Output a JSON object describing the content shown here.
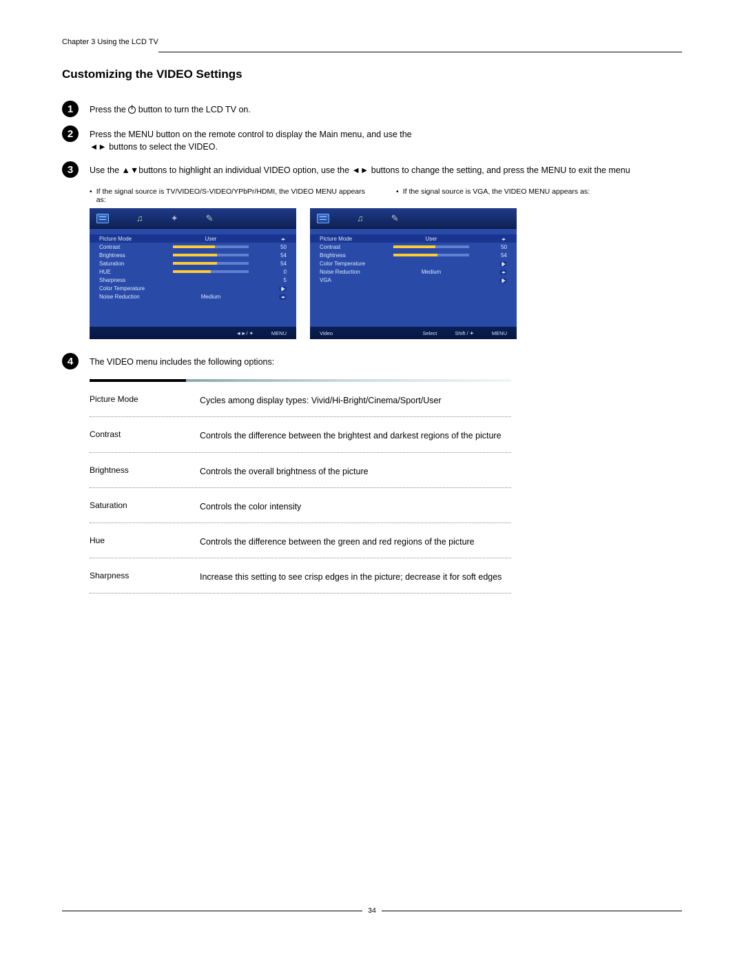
{
  "header": {
    "chapter": "Chapter 3 Using the LCD TV",
    "title": "Customizing the VIDEO Settings"
  },
  "steps": {
    "s1": {
      "pre": "Press the ",
      "post": " button to turn the LCD TV on."
    },
    "s2": {
      "a": "Press the MENU button on the remote control to display the Main menu, and use the",
      "b": "◄► buttons to select the VIDEO."
    },
    "s3": {
      "a": "Use the  ▲▼buttons to highlight an individual VIDEO option, use the ◄► buttons to change the setting, and press the MENU to exit the menu"
    },
    "s4": {
      "a": "The VIDEO menu includes the following options:"
    }
  },
  "captions": {
    "left": "If the signal source is TV/VIDEO/S-VIDEO/YPbPr/HDMI, the VIDEO MENU appears as:",
    "right": "If the signal source is VGA, the VIDEO MENU appears as:"
  },
  "menu_left": {
    "rows": [
      {
        "label": "Picture Mode",
        "center_text": "User",
        "right_type": "arrows",
        "hilite": true
      },
      {
        "label": "Contrast",
        "slider": 55,
        "right_text": "50"
      },
      {
        "label": "Brightness",
        "slider": 58,
        "right_text": "54"
      },
      {
        "label": "Saturation",
        "slider": 58,
        "right_text": "54"
      },
      {
        "label": "HUE",
        "slider": 50,
        "right_text": "0"
      },
      {
        "label": "Sharpness",
        "right_text": "5"
      },
      {
        "label": "Color Temperature",
        "right_type": "enter"
      },
      {
        "label": "Noise Reduction",
        "center_text": "Medium",
        "right_type": "arrows"
      }
    ],
    "footer": [
      "",
      "◄►/ ✦",
      "MENU"
    ]
  },
  "menu_right": {
    "rows": [
      {
        "label": "Picture Mode",
        "center_text": "User",
        "right_type": "arrows",
        "hilite": true
      },
      {
        "label": "Contrast",
        "slider": 55,
        "right_text": "50"
      },
      {
        "label": "Brightness",
        "slider": 58,
        "right_text": "54"
      },
      {
        "label": "Color Temperature",
        "right_type": "enter"
      },
      {
        "label": "Noise Reduction",
        "center_text": "Medium",
        "right_type": "arrows"
      },
      {
        "label": "VGA",
        "right_type": "enter"
      }
    ],
    "footer_left": "Video",
    "footer": [
      "Select",
      "Shift / ✦",
      "MENU"
    ]
  },
  "options": [
    {
      "name": "Picture Mode",
      "desc": "Cycles among display types: Vivid/Hi-Bright/Cinema/Sport/User"
    },
    {
      "name": "Contrast",
      "desc": "Controls the difference between the brightest and darkest regions of the picture"
    },
    {
      "name": "Brightness",
      "desc": "Controls the overall brightness of the picture"
    },
    {
      "name": "Saturation",
      "desc": "Controls the color intensity"
    },
    {
      "name": "Hue",
      "desc": "Controls the difference between the green and red regions of the picture"
    },
    {
      "name": "Sharpness",
      "desc": "Increase this setting to see crisp edges in the picture; decrease it for soft edges"
    }
  ],
  "page_number": "34",
  "colors": {
    "menu_bg": "#2a4aa8",
    "menu_dark": "#152a6b",
    "slider_fill": "#ffcc33",
    "slider_track": "#6080d0"
  }
}
